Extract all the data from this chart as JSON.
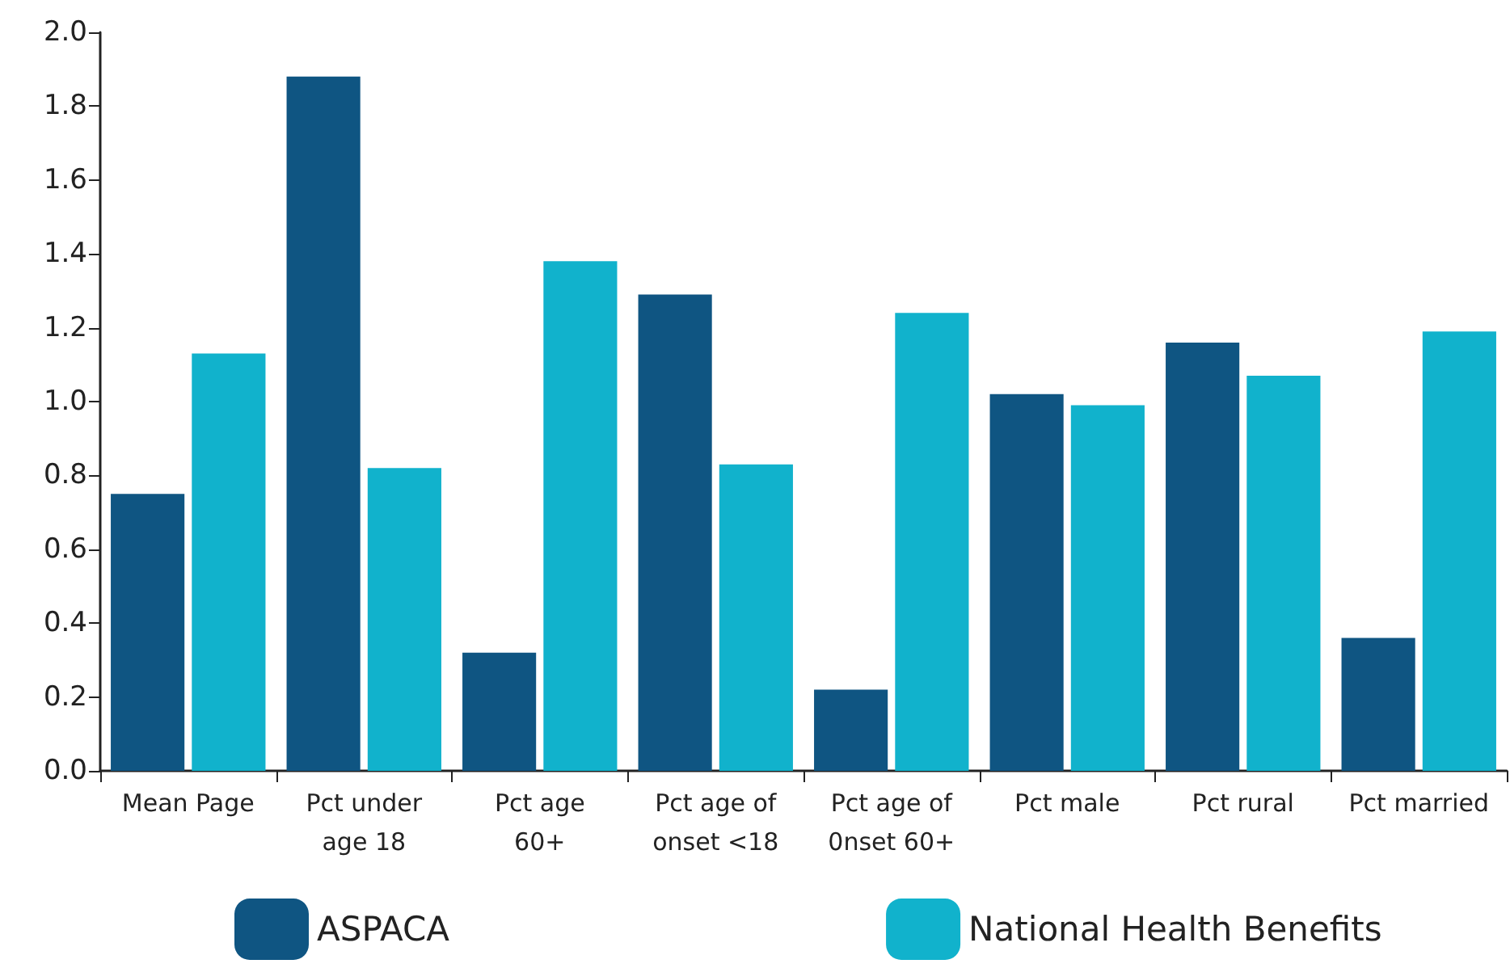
{
  "chart_data": {
    "type": "bar",
    "categories": [
      "Mean Page",
      "Pct under\nage 18",
      "Pct age\n60+",
      "Pct age of\nonset <18",
      "Pct age of\n0nset 60+",
      "Pct male",
      "Pct rural",
      "Pct married"
    ],
    "series": [
      {
        "name": "ASPACA",
        "color": "#0f5582",
        "values": [
          0.75,
          1.88,
          0.32,
          1.29,
          0.22,
          1.02,
          1.16,
          0.36
        ]
      },
      {
        "name": "National Health Benefits",
        "color": "#11b2cc",
        "values": [
          1.13,
          0.82,
          1.38,
          0.83,
          1.24,
          0.99,
          1.07,
          1.19
        ]
      }
    ],
    "ylim": [
      0,
      2
    ],
    "yticks": [
      {
        "value": 0,
        "label": "0.0"
      },
      0.2,
      0.4,
      0.6,
      0.8,
      {
        "value": 1,
        "label": "1.0"
      },
      1.2,
      1.4,
      1.6,
      1.8,
      {
        "value": 2,
        "label": "2.0"
      }
    ],
    "grid": false,
    "legend": "bottom"
  }
}
